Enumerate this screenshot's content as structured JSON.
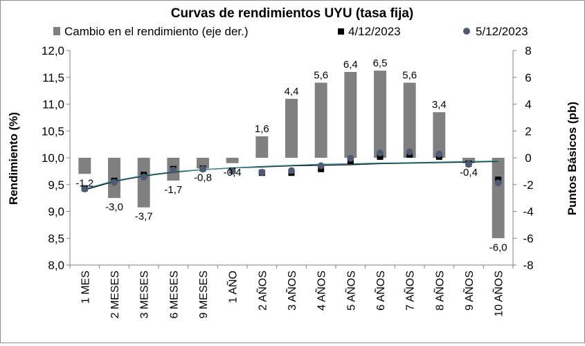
{
  "chart_data": {
    "type": "bar+scatter",
    "title": "Curvas de rendimientos UYU (tasa fija)",
    "categories": [
      "1 MES",
      "2 MESES",
      "3 MESES",
      "6 MESES",
      "9 MESES",
      "1 AÑO",
      "2 AÑOS",
      "3 AÑOS",
      "4 AÑOS",
      "5 AÑOS",
      "6 AÑOS",
      "7 AÑOS",
      "8 AÑOS",
      "9 AÑOS",
      "10 AÑOS"
    ],
    "ylabel_left": "Rendimiento (%)",
    "ylabel_right": "Puntos Básicos (pb)",
    "ylim_left": [
      8.0,
      12.0
    ],
    "yticks_left": [
      "8,0",
      "8,5",
      "9,0",
      "9,5",
      "10,0",
      "10,5",
      "11,0",
      "11,5",
      "12,0"
    ],
    "ylim_right": [
      -8,
      8
    ],
    "yticks_right": [
      "-8",
      "-6",
      "-4",
      "-2",
      "0",
      "2",
      "4",
      "6",
      "8"
    ],
    "legend_position": "top",
    "grid": false,
    "series": [
      {
        "name": "Cambio en el rendimiento (eje der.)",
        "kind": "bar",
        "axis": "right",
        "color": "#808080",
        "values": [
          -1.2,
          -3.0,
          -3.7,
          -1.7,
          -0.8,
          -0.4,
          1.6,
          4.4,
          5.6,
          6.4,
          6.5,
          5.6,
          3.4,
          -0.4,
          -6.0
        ],
        "labels": [
          "-1,2",
          "-3,0",
          "-3,7",
          "-1,7",
          "-0,8",
          "-0,4",
          "1,6",
          "4,4",
          "5,6",
          "6,4",
          "6,5",
          "5,6",
          "3,4",
          "-0,4",
          "-6,0"
        ]
      },
      {
        "name": "4/12/2023",
        "kind": "scatter",
        "marker": "square",
        "axis": "left",
        "color": "#000000",
        "values": [
          9.43,
          9.57,
          9.68,
          9.79,
          9.8,
          9.76,
          9.72,
          9.72,
          9.79,
          9.94,
          10.02,
          10.06,
          10.02,
          9.89,
          9.59
        ]
      },
      {
        "name": "5/12/2023",
        "kind": "scatter",
        "marker": "circle",
        "axis": "left",
        "color": "#4f5b73",
        "values": [
          9.42,
          9.54,
          9.64,
          9.77,
          9.79,
          9.75,
          9.73,
          9.76,
          9.85,
          9.99,
          10.09,
          10.11,
          10.07,
          9.88,
          9.53
        ]
      }
    ],
    "fit_lines": {
      "colors": [
        "#000000",
        "#2e8b9a"
      ],
      "values": [
        [
          9.4,
          9.56,
          9.66,
          9.73,
          9.78,
          9.81,
          9.83,
          9.85,
          9.86,
          9.87,
          9.89,
          9.9,
          9.91,
          9.92,
          9.93
        ],
        [
          9.42,
          9.57,
          9.67,
          9.74,
          9.78,
          9.81,
          9.84,
          9.86,
          9.88,
          9.89,
          9.9,
          9.91,
          9.92,
          9.93,
          9.94
        ]
      ]
    }
  }
}
